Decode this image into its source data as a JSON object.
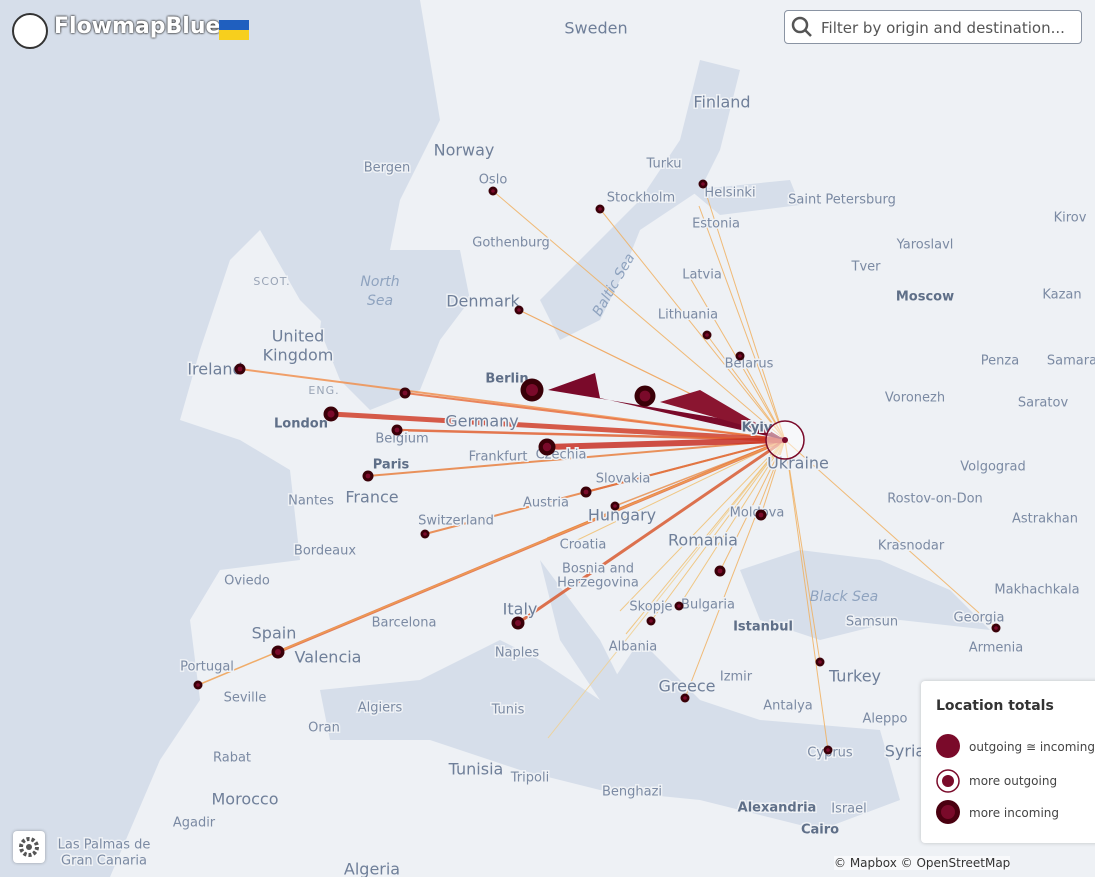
{
  "header": {
    "logo": "FlowmapBlue"
  },
  "search": {
    "placeholder": "Filter by origin and destination..."
  },
  "places": [
    "Sweden",
    "Finland",
    "Norway",
    "Bergen",
    "Oslo",
    "Turku",
    "Helsinki",
    "Saint Petersburg",
    "Stockholm",
    "Estonia",
    "Kirov",
    "Gothenburg",
    "Yaroslavl",
    "SCOT.",
    "North",
    "Sea",
    "Latvia",
    "Tver",
    "Moscow",
    "Kazan",
    "Denmark",
    "Baltic Sea",
    "Lithuania",
    "United",
    "Kingdom",
    "Belarus",
    "Penza",
    "Samara",
    "Ireland",
    "ENG.",
    "Berlin",
    "Voronezh",
    "Saratov",
    "Germany",
    "London",
    "Kyiv",
    "Belgium",
    "Frankfurt",
    "Czechia",
    "Ukraine",
    "Volgograd",
    "Paris",
    "Slovakia",
    "France",
    "Nantes",
    "Austria",
    "Rostov-on-Don",
    "Hungary",
    "Moldova",
    "Astrakhan",
    "Switzerland",
    "Croatia",
    "Romania",
    "Bordeaux",
    "Krasnodar",
    "Bosnia and",
    "Herzegovina",
    "Oviedo",
    "Makhachkala",
    "Black Sea",
    "Skopje",
    "Bulgaria",
    "Italy",
    "Spain",
    "Barcelona",
    "Samsun",
    "Georgia",
    "Istanbul",
    "Albania",
    "Armenia",
    "Naples",
    "Valencia",
    "Portugal",
    "Turkey",
    "Greece",
    "Izmir",
    "Seville",
    "Algiers",
    "Tunis",
    "Antalya",
    "Aleppo",
    "Oran",
    "Cyprus",
    "Tunisia",
    "Tripoli",
    "Rabat",
    "Syria",
    "Benghazi",
    "Morocco",
    "Alexandria",
    "Israel",
    "Cairo",
    "Agadir",
    "Las Palmas de",
    "Gran Canaria",
    "Algeria"
  ],
  "legend": {
    "title": "Location totals",
    "items": [
      "outgoing ≅ incoming",
      "more outgoing",
      "more incoming"
    ]
  },
  "attribution": "© Mapbox © OpenStreetMap"
}
